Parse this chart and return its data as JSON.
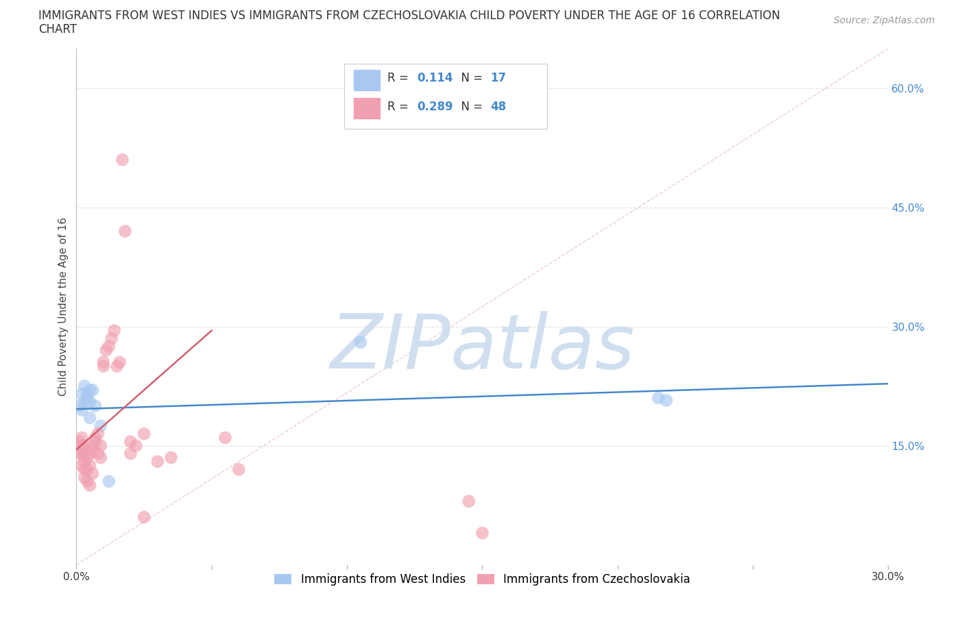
{
  "title_line1": "IMMIGRANTS FROM WEST INDIES VS IMMIGRANTS FROM CZECHOSLOVAKIA CHILD POVERTY UNDER THE AGE OF 16 CORRELATION",
  "title_line2": "CHART",
  "source": "Source: ZipAtlas.com",
  "ylabel": "Child Poverty Under the Age of 16",
  "xlim": [
    0.0,
    0.3
  ],
  "ylim": [
    0.0,
    0.65
  ],
  "xticks": [
    0.0,
    0.05,
    0.1,
    0.15,
    0.2,
    0.25,
    0.3
  ],
  "xticklabels": [
    "0.0%",
    "",
    "",
    "",
    "",
    "",
    "30.0%"
  ],
  "ytick_positions": [
    0.15,
    0.3,
    0.45,
    0.6
  ],
  "ytick_labels": [
    "15.0%",
    "30.0%",
    "45.0%",
    "60.0%"
  ],
  "legend1_label": "Immigrants from West Indies",
  "legend2_label": "Immigrants from Czechoslovakia",
  "R1": "0.114",
  "N1": "17",
  "R2": "0.289",
  "N2": "48",
  "color_blue": "#A8C8F0",
  "color_pink": "#F0A0B0",
  "color_blue_line": "#4488CC",
  "color_pink_line": "#D06070",
  "color_diag": "#E8B8C0",
  "watermark": "ZIPatlas",
  "watermark_color": "#D0DFF0",
  "blue_dots_x": [
    0.001,
    0.002,
    0.002,
    0.003,
    0.003,
    0.004,
    0.004,
    0.005,
    0.005,
    0.005,
    0.006,
    0.007,
    0.009,
    0.012,
    0.105,
    0.215,
    0.218
  ],
  "blue_dots_y": [
    0.2,
    0.215,
    0.195,
    0.225,
    0.205,
    0.21,
    0.215,
    0.185,
    0.205,
    0.22,
    0.22,
    0.2,
    0.175,
    0.105,
    0.28,
    0.21,
    0.207
  ],
  "pink_dots_x": [
    0.001,
    0.001,
    0.001,
    0.002,
    0.002,
    0.002,
    0.002,
    0.003,
    0.003,
    0.003,
    0.003,
    0.003,
    0.004,
    0.004,
    0.004,
    0.005,
    0.005,
    0.005,
    0.006,
    0.006,
    0.006,
    0.007,
    0.007,
    0.008,
    0.008,
    0.009,
    0.009,
    0.01,
    0.01,
    0.011,
    0.012,
    0.013,
    0.014,
    0.015,
    0.016,
    0.017,
    0.018,
    0.02,
    0.022,
    0.025,
    0.03,
    0.035,
    0.055,
    0.06,
    0.145,
    0.15,
    0.02,
    0.025
  ],
  "pink_dots_y": [
    0.14,
    0.15,
    0.155,
    0.125,
    0.14,
    0.15,
    0.16,
    0.11,
    0.12,
    0.13,
    0.14,
    0.15,
    0.105,
    0.12,
    0.135,
    0.1,
    0.125,
    0.14,
    0.115,
    0.145,
    0.15,
    0.155,
    0.16,
    0.14,
    0.165,
    0.135,
    0.15,
    0.25,
    0.255,
    0.27,
    0.275,
    0.285,
    0.295,
    0.25,
    0.255,
    0.51,
    0.42,
    0.155,
    0.15,
    0.165,
    0.13,
    0.135,
    0.16,
    0.12,
    0.08,
    0.04,
    0.14,
    0.06
  ],
  "blue_trend_x": [
    0.0,
    0.3
  ],
  "blue_trend_y": [
    0.196,
    0.228
  ],
  "pink_trend_x": [
    0.0,
    0.05
  ],
  "pink_trend_y": [
    0.145,
    0.295
  ],
  "bg_color": "#FFFFFF",
  "grid_color": "#DDDDDD"
}
